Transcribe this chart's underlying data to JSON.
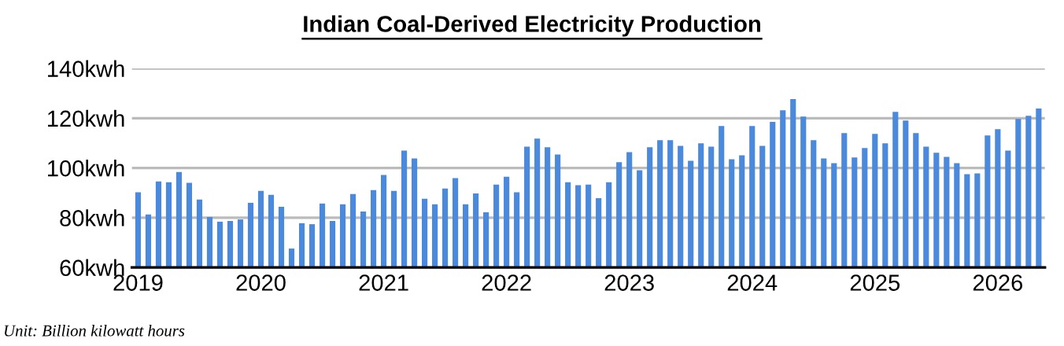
{
  "chart_data": {
    "type": "bar",
    "title": "Indian Coal-Derived Electricity Production",
    "categories": [
      "2019",
      null,
      null,
      null,
      null,
      null,
      null,
      null,
      null,
      null,
      null,
      null,
      "2020",
      null,
      null,
      null,
      null,
      null,
      null,
      null,
      null,
      null,
      null,
      null,
      "2021",
      null,
      null,
      null,
      null,
      null,
      null,
      null,
      null,
      null,
      null,
      null,
      "2022",
      null,
      null,
      null,
      null,
      null,
      null,
      null,
      null,
      null,
      null,
      null,
      "2023",
      null,
      null,
      null,
      null,
      null,
      null,
      null,
      null,
      null,
      null,
      null,
      "2024",
      null,
      null,
      null,
      null,
      null,
      null,
      null,
      null,
      null,
      null,
      null,
      "2025",
      null,
      null,
      null,
      null,
      null,
      null,
      null,
      null,
      null,
      null,
      null,
      "2026",
      null,
      null,
      null,
      null
    ],
    "values": [
      90.2,
      81.3,
      94.6,
      94.3,
      98.4,
      94.0,
      87.3,
      80.3,
      78.4,
      78.7,
      79.3,
      86.0,
      90.8,
      89.2,
      84.4,
      67.6,
      77.8,
      77.4,
      85.7,
      78.7,
      85.4,
      89.5,
      82.5,
      91.1,
      97.2,
      90.8,
      107.0,
      103.8,
      87.6,
      85.4,
      91.7,
      95.9,
      85.4,
      89.8,
      82.2,
      93.3,
      96.5,
      90.2,
      108.6,
      111.8,
      108.3,
      105.4,
      94.3,
      93.1,
      93.3,
      87.9,
      94.3,
      102.3,
      106.4,
      99.1,
      108.3,
      111.2,
      111.2,
      108.9,
      102.9,
      109.9,
      108.6,
      116.9,
      103.5,
      105.1,
      116.9,
      108.9,
      118.5,
      123.2,
      127.7,
      120.7,
      111.2,
      103.8,
      101.9,
      114.0,
      104.2,
      108.0,
      113.7,
      109.9,
      122.6,
      119.1,
      114.0,
      108.6,
      106.1,
      104.5,
      101.9,
      97.5,
      97.8,
      113.1,
      115.6,
      107.0,
      119.7,
      121.0,
      123.9
    ],
    "color": "#4a89dc",
    "ylim": [
      60,
      140
    ],
    "yticks": [
      {
        "value": 60,
        "label": "60kwh"
      },
      {
        "value": 80,
        "label": "80kwh"
      },
      {
        "value": 100,
        "label": "100kwh"
      },
      {
        "value": 120,
        "label": "120kwh"
      },
      {
        "value": 140,
        "label": "140kwh"
      }
    ],
    "grid": "y",
    "annotations": [
      "Unit: Billion kilowatt hours"
    ]
  }
}
